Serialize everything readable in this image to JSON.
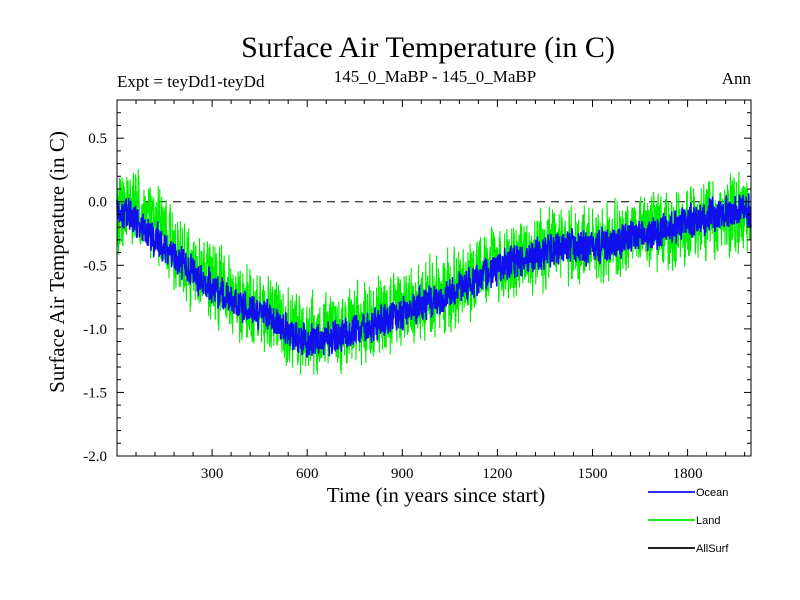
{
  "chart_data": {
    "type": "line",
    "title": "Surface Air Temperature (in C)",
    "subtitle_left": "Expt = teyDd1-teyDd",
    "subtitle_center": "145_0_MaBP - 145_0_MaBP",
    "subtitle_right": "Ann",
    "xlabel": "Time (in years since start)",
    "ylabel": "Surface Air Temperature (in C)",
    "xlim": [
      0,
      2000
    ],
    "ylim": [
      -2.0,
      0.8
    ],
    "x_ticks": [
      300,
      600,
      900,
      1200,
      1500,
      1800
    ],
    "x_tick_labels": [
      "300",
      "600",
      "900",
      "1200",
      "1500",
      "1800"
    ],
    "y_ticks": [
      -2.0,
      -1.5,
      -1.0,
      -0.5,
      0.0,
      0.5
    ],
    "y_tick_labels": [
      "-2.0",
      "-1.5",
      "-1.0",
      "-0.5",
      "0.0",
      "0.5"
    ],
    "reference_line": 0.0,
    "legend_position": "bottom-right, below plot",
    "series": [
      {
        "name": "Land",
        "color": "#00ee00",
        "x": [
          0,
          50,
          100,
          150,
          200,
          250,
          300,
          350,
          400,
          450,
          500,
          550,
          600,
          650,
          700,
          750,
          800,
          850,
          900,
          950,
          1000,
          1050,
          1100,
          1150,
          1200,
          1250,
          1300,
          1350,
          1400,
          1450,
          1500,
          1550,
          1600,
          1650,
          1700,
          1750,
          1800,
          1850,
          1900,
          1950,
          2000
        ],
        "values": [
          -0.1,
          -0.05,
          -0.15,
          -0.25,
          -0.45,
          -0.55,
          -0.65,
          -0.72,
          -0.8,
          -0.85,
          -0.92,
          -1.0,
          -1.05,
          -1.02,
          -1.0,
          -0.98,
          -0.92,
          -0.88,
          -0.85,
          -0.78,
          -0.75,
          -0.7,
          -0.62,
          -0.55,
          -0.48,
          -0.45,
          -0.4,
          -0.38,
          -0.35,
          -0.33,
          -0.35,
          -0.32,
          -0.3,
          -0.28,
          -0.25,
          -0.22,
          -0.18,
          -0.15,
          -0.12,
          -0.1,
          -0.1
        ],
        "noise_amplitude": 0.28
      },
      {
        "name": "Ocean",
        "color": "#1010ee",
        "x": [
          0,
          50,
          100,
          150,
          200,
          250,
          300,
          350,
          400,
          450,
          500,
          550,
          600,
          650,
          700,
          750,
          800,
          850,
          900,
          950,
          1000,
          1050,
          1100,
          1150,
          1200,
          1250,
          1300,
          1350,
          1400,
          1450,
          1500,
          1550,
          1600,
          1650,
          1700,
          1750,
          1800,
          1850,
          1900,
          1950,
          2000
        ],
        "values": [
          -0.08,
          -0.12,
          -0.25,
          -0.35,
          -0.48,
          -0.58,
          -0.68,
          -0.75,
          -0.82,
          -0.88,
          -0.95,
          -1.05,
          -1.1,
          -1.08,
          -1.05,
          -1.02,
          -0.98,
          -0.92,
          -0.88,
          -0.82,
          -0.78,
          -0.74,
          -0.66,
          -0.6,
          -0.52,
          -0.48,
          -0.44,
          -0.4,
          -0.37,
          -0.35,
          -0.36,
          -0.33,
          -0.3,
          -0.28,
          -0.24,
          -0.2,
          -0.16,
          -0.13,
          -0.1,
          -0.08,
          -0.08
        ],
        "noise_amplitude": 0.12
      },
      {
        "name": "AllSurf",
        "color": "#000000",
        "x": [],
        "values": []
      }
    ]
  }
}
